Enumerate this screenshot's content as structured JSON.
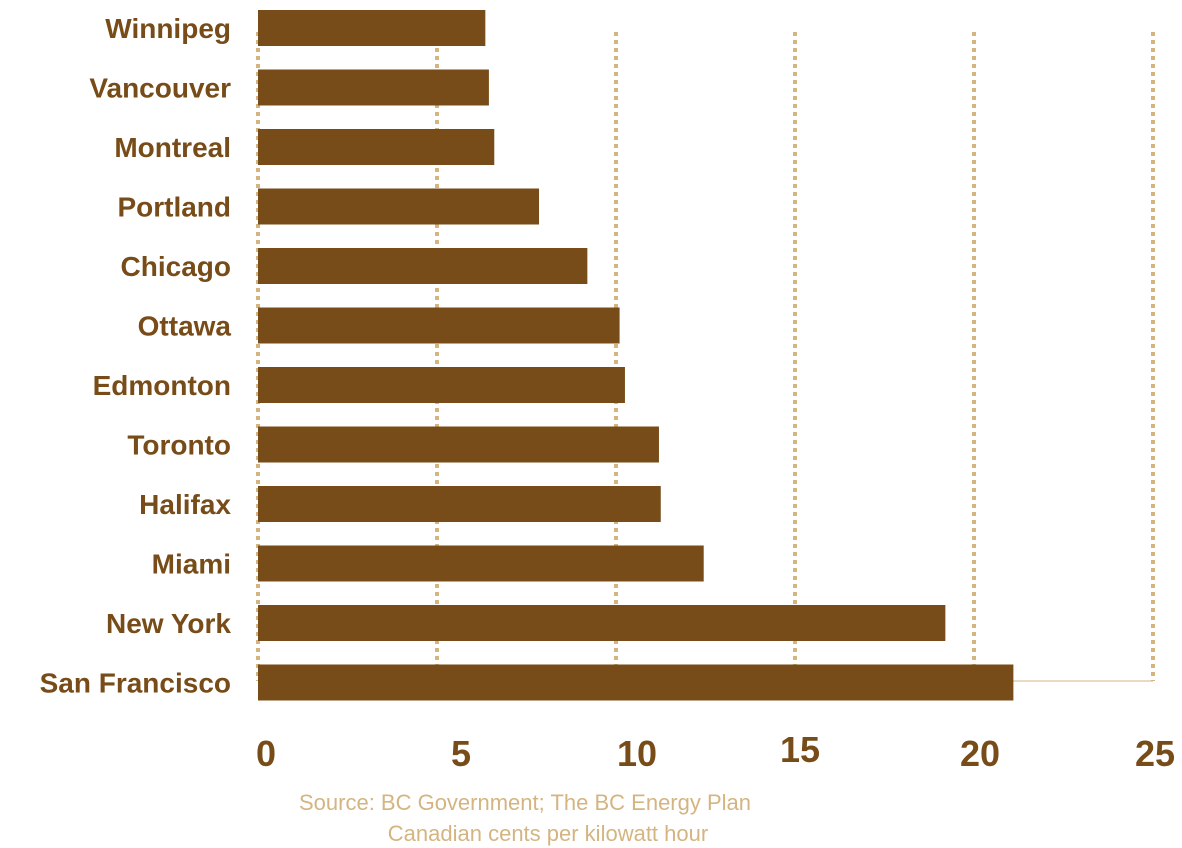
{
  "chart_data": {
    "type": "bar",
    "orientation": "horizontal",
    "categories": [
      "Winnipeg",
      "Vancouver",
      "Montreal",
      "Portland",
      "Chicago",
      "Ottawa",
      "Edmonton",
      "Toronto",
      "Halifax",
      "Miami",
      "New York",
      "San Francisco"
    ],
    "values": [
      6.35,
      6.45,
      6.6,
      7.85,
      9.2,
      10.1,
      10.25,
      11.2,
      11.25,
      12.45,
      19.2,
      21.1
    ],
    "xlim": [
      0,
      25
    ],
    "xticks": [
      "0",
      "5",
      "10",
      "15",
      "20",
      "25"
    ],
    "grid": true,
    "notes": [
      "Source: BC Government; The BC Energy Plan",
      "Canadian cents per kilowatt hour"
    ],
    "colors": {
      "bar": "#774c18",
      "grid": "#d4b582",
      "label": "#774c18",
      "note": "#d4b582"
    }
  }
}
